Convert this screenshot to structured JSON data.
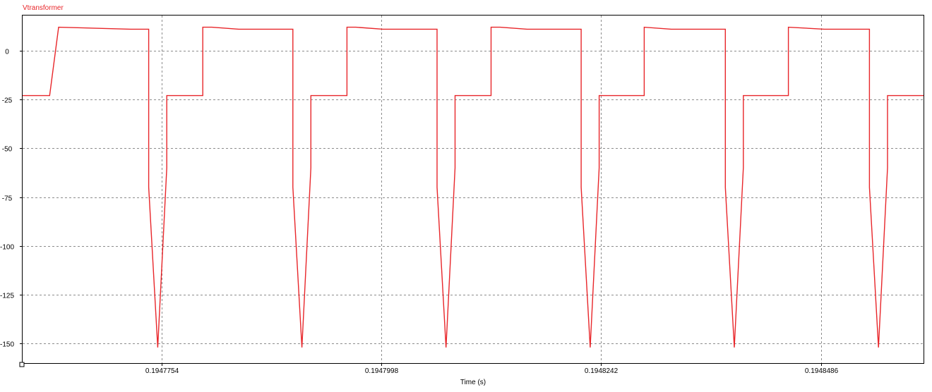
{
  "chart_data": {
    "type": "line",
    "xlabel": "Time (s)",
    "ylabel": "",
    "xlim": [
      0.19476,
      0.19486
    ],
    "ylim": [
      -160,
      18
    ],
    "grid": true,
    "yticks": [
      0,
      -25,
      -50,
      -75,
      -100,
      -125,
      -150
    ],
    "ytick_labels": [
      "0",
      "-25",
      "-50",
      "-75",
      "-100",
      "-125",
      "-150"
    ],
    "xticks": [
      0.1947754,
      0.1947998,
      0.1948242,
      0.1948486
    ],
    "xtick_labels": [
      "0.1947754",
      "0.1947998",
      "0.1948242",
      "0.1948486"
    ],
    "series": [
      {
        "name": "Vtransformer",
        "color": "#e8262a",
        "x": [
          0.19476,
          0.194763,
          0.194764,
          0.194772,
          0.194774,
          0.194774,
          0.194775,
          0.194775,
          0.194776,
          0.194776,
          0.194776,
          0.194776,
          0.19478,
          0.19478,
          0.194781,
          0.194784,
          0.194785,
          0.19479,
          0.19479,
          0.194791,
          0.194791,
          0.194792,
          0.194792,
          0.194792,
          0.194792,
          0.194796,
          0.194796,
          0.194797,
          0.1948,
          0.194801,
          0.194806,
          0.194806,
          0.194807,
          0.194807,
          0.194808,
          0.194808,
          0.194808,
          0.194808,
          0.194812,
          0.194812,
          0.194813,
          0.194816,
          0.194817,
          0.194822,
          0.194822,
          0.194823,
          0.194823,
          0.194824,
          0.194824,
          0.194824,
          0.194824,
          0.194829,
          0.194829,
          0.194829,
          0.194832,
          0.194833,
          0.194838,
          0.194838,
          0.194839,
          0.194839,
          0.19484,
          0.19484,
          0.19484,
          0.19484,
          0.194845,
          0.194845,
          0.194845,
          0.194849,
          0.194849,
          0.194854,
          0.194854,
          0.194855,
          0.194855,
          0.194856,
          0.194856,
          0.194856,
          0.194856,
          0.19486
        ],
        "values": [
          -23,
          -23,
          12,
          11,
          11,
          -70,
          -152,
          -152,
          -60,
          -23,
          -23,
          -23,
          -23,
          12,
          12,
          11,
          11,
          11,
          -70,
          -152,
          -152,
          -60,
          -23,
          -23,
          -23,
          -23,
          12,
          12,
          11,
          11,
          11,
          -70,
          -152,
          -152,
          -60,
          -23,
          -23,
          -23,
          -23,
          12,
          12,
          11,
          11,
          11,
          -70,
          -152,
          -152,
          -60,
          -23,
          -23,
          -23,
          -23,
          12,
          12,
          11,
          11,
          11,
          -70,
          -152,
          -152,
          -60,
          -23,
          -23,
          -23,
          -23,
          12,
          12,
          11,
          11,
          11,
          -70,
          -152,
          -152,
          -60,
          -23,
          -23,
          -23,
          -23
        ]
      }
    ]
  }
}
